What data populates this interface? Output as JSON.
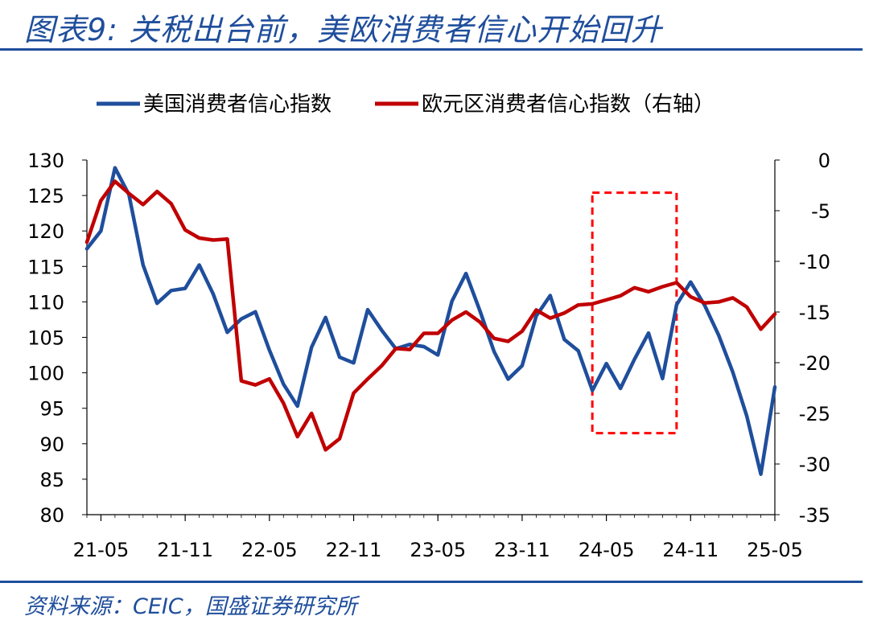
{
  "header": {
    "title": "图表9: 关税出台前，美欧消费者信心开始回升"
  },
  "footer": {
    "source": "资料来源：CEIC，国盛证券研究所"
  },
  "colors": {
    "us": "#1f4e9c",
    "eu": "#c00000",
    "highlight": "#ff0000",
    "rule": "#1f4e9c"
  },
  "chart_data": {
    "type": "line",
    "x_ticks": [
      "21-05",
      "21-11",
      "22-05",
      "22-11",
      "23-05",
      "23-11",
      "24-05",
      "24-11",
      "25-05"
    ],
    "y_left": {
      "min": 80,
      "max": 130,
      "step": 5,
      "ticks": [
        "130",
        "125",
        "120",
        "115",
        "110",
        "105",
        "100",
        "95",
        "90",
        "85",
        "80"
      ]
    },
    "y_right": {
      "min": -35,
      "max": 0,
      "step": 5,
      "ticks": [
        "0",
        "-5",
        "-10",
        "-15",
        "-20",
        "-25",
        "-30",
        "-35"
      ]
    },
    "x_start": "2021-04",
    "grid": false,
    "legend_position": "top",
    "series": [
      {
        "name": "美国消费者信心指数",
        "axis": "left",
        "values": [
          117.5,
          120.0,
          128.9,
          125.1,
          115.2,
          109.8,
          111.6,
          111.9,
          115.2,
          111.1,
          105.7,
          107.6,
          108.6,
          103.2,
          98.4,
          95.3,
          103.6,
          107.8,
          102.2,
          101.4,
          108.9,
          106.0,
          103.4,
          104.0,
          103.7,
          102.5,
          110.1,
          114.0,
          108.7,
          103.0,
          99.1,
          101.0,
          108.0,
          110.9,
          104.7,
          103.1,
          97.5,
          101.3,
          97.8,
          101.9,
          105.6,
          99.2,
          109.6,
          112.8,
          109.5,
          105.3,
          100.1,
          93.9,
          85.7,
          98.0
        ]
      },
      {
        "name": "欧元区消费者信心指数（右轴）",
        "axis": "right",
        "values": [
          -8.1,
          -4.0,
          -2.1,
          -3.3,
          -4.4,
          -3.1,
          -4.3,
          -6.9,
          -7.7,
          -7.9,
          -7.8,
          -21.8,
          -22.2,
          -21.6,
          -24.0,
          -27.3,
          -25.0,
          -28.6,
          -27.5,
          -23.0,
          -21.6,
          -20.3,
          -18.6,
          -18.7,
          -17.1,
          -17.1,
          -15.8,
          -15.0,
          -16.0,
          -17.6,
          -17.9,
          -16.9,
          -14.8,
          -15.6,
          -15.1,
          -14.3,
          -14.2,
          -13.8,
          -13.4,
          -12.6,
          -13.0,
          -12.5,
          -12.1,
          -13.5,
          -14.1,
          -14.0,
          -13.6,
          -14.5,
          -16.7,
          -15.2
        ]
      }
    ],
    "annotations": [
      {
        "type": "dashed-box",
        "from": "2024-04",
        "to": "2024-10",
        "y_left_from": 91.5,
        "y_left_to": 125.4
      }
    ]
  }
}
